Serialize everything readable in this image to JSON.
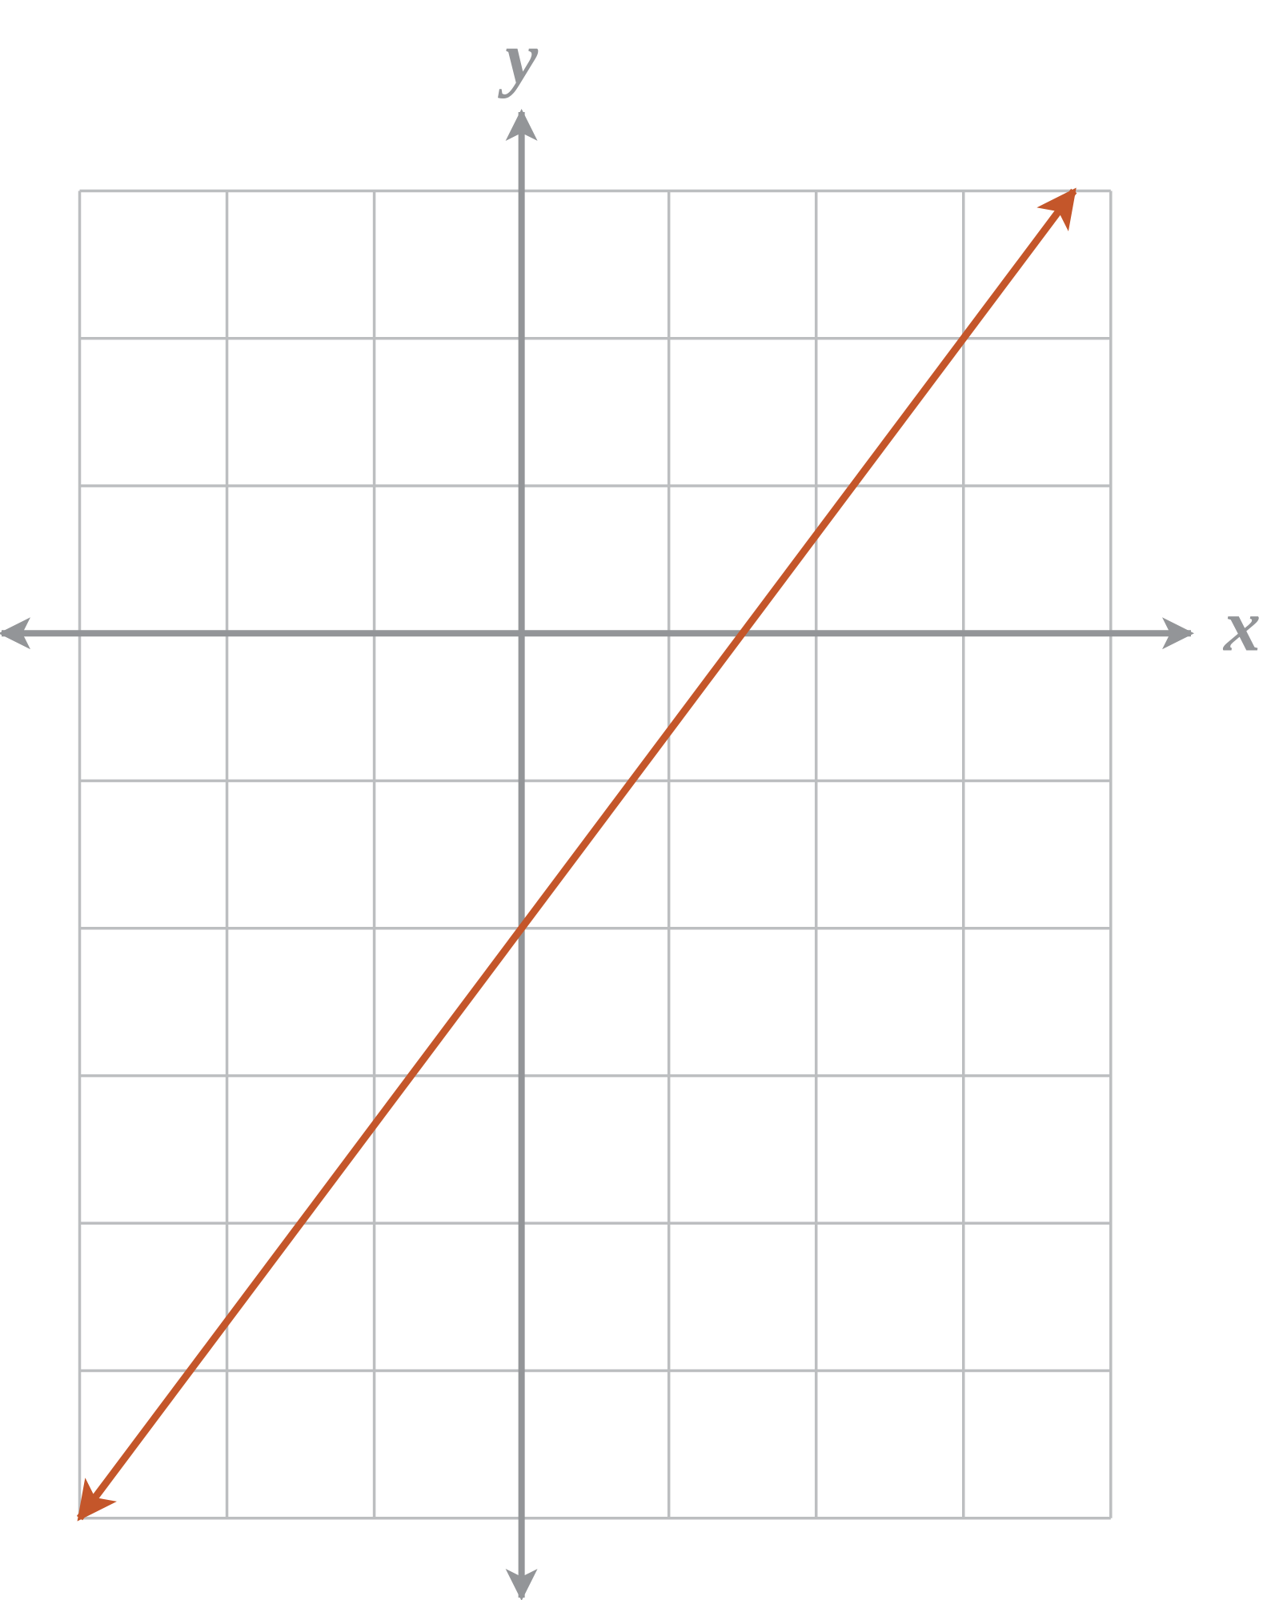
{
  "chart_data": {
    "type": "line",
    "x_label": "x",
    "y_label": "y",
    "x": [
      -3,
      3.75
    ],
    "values": [
      -6,
      3
    ],
    "color": "#c4562a",
    "xlim": [
      -3,
      4
    ],
    "ylim": [
      -6,
      3
    ],
    "xticks": [
      -3,
      -2,
      -1,
      0,
      1,
      2,
      3,
      4
    ],
    "yticks": [
      -6,
      -5,
      -4,
      -3,
      -2,
      -1,
      0,
      1,
      2,
      3
    ],
    "grid": true
  }
}
